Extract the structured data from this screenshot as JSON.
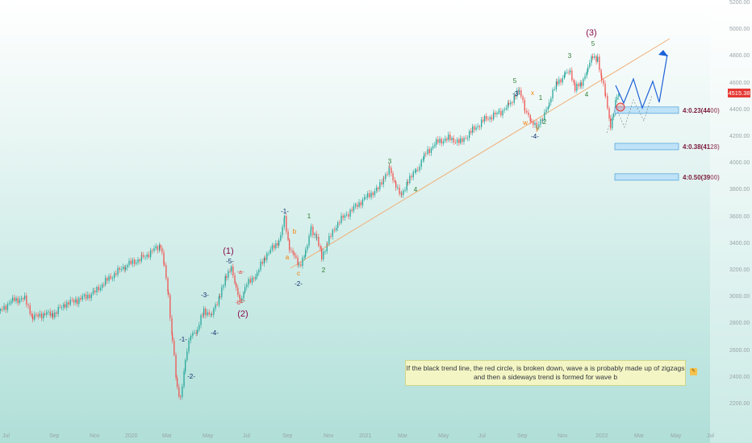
{
  "chart_data": {
    "type": "candlestick",
    "current_price": "4515.38",
    "y_axis_ticks": [
      "5200.00",
      "5000.00",
      "4800.00",
      "4600.00",
      "4400.00",
      "4200.00",
      "4000.00",
      "3800.00",
      "3600.00",
      "3400.00",
      "3200.00",
      "3000.00",
      "2800.00",
      "2600.00",
      "2400.00",
      "2200.00"
    ],
    "x_axis_ticks": [
      "Jul",
      "Sep",
      "Nov",
      "2020",
      "Mar",
      "May",
      "Jul",
      "Sep",
      "Nov",
      "2021",
      "Mar",
      "May",
      "Jul",
      "Sep",
      "Nov",
      "2022",
      "Mar",
      "May",
      "Jul"
    ],
    "series_approx": [
      {
        "t": "2019-06",
        "price": 2900
      },
      {
        "t": "2019-08",
        "price": 2880
      },
      {
        "t": "2019-10",
        "price": 2980
      },
      {
        "t": "2020-01",
        "price": 3300
      },
      {
        "t": "2020-02-19",
        "price": 3390
      },
      {
        "t": "2020-03-23",
        "price": 2240
      },
      {
        "t": "2020-04",
        "price": 2800
      },
      {
        "t": "2020-06-08",
        "price": 3230
      },
      {
        "t": "2020-06",
        "price": 3000
      },
      {
        "t": "2020-09-02",
        "price": 3580
      },
      {
        "t": "2020-09-23",
        "price": 3240
      },
      {
        "t": "2020-10-12",
        "price": 3530
      },
      {
        "t": "2020-10-30",
        "price": 3270
      },
      {
        "t": "2021-01",
        "price": 3850
      },
      {
        "t": "2021-02",
        "price": 3950
      },
      {
        "t": "2021-03",
        "price": 3730
      },
      {
        "t": "2021-05",
        "price": 4200
      },
      {
        "t": "2021-07",
        "price": 4400
      },
      {
        "t": "2021-09-02",
        "price": 4545
      },
      {
        "t": "2021-10-04",
        "price": 4280
      },
      {
        "t": "2021-11",
        "price": 4700
      },
      {
        "t": "2021-12",
        "price": 4600
      },
      {
        "t": "2022-01-04",
        "price": 4810
      },
      {
        "t": "2022-01-24",
        "price": 4220
      },
      {
        "t": "2022-02",
        "price": 4515
      }
    ],
    "targets": [
      {
        "label": "4:0.23(4400)",
        "price": 4400
      },
      {
        "label": "4:0.38(4128)",
        "price": 4128
      },
      {
        "label": "4:0.50(3900)",
        "price": 3900
      }
    ],
    "wave_labels": [
      {
        "text": "(1)",
        "color": "#880e4f"
      },
      {
        "text": "(2)",
        "color": "#880e4f"
      },
      {
        "text": "(3)",
        "color": "#880e4f"
      },
      {
        "text": "-1-",
        "color": "#0d2b6b"
      },
      {
        "text": "-2-",
        "color": "#0d2b6b"
      },
      {
        "text": "-3-",
        "color": "#0d2b6b"
      },
      {
        "text": "-4-",
        "color": "#0d2b6b"
      },
      {
        "text": "-5-",
        "color": "#0d2b6b"
      },
      {
        "text": "-1-",
        "color": "#0d2b6b"
      },
      {
        "text": "-2-",
        "color": "#0d2b6b"
      },
      {
        "text": "-3-",
        "color": "#0d2b6b"
      },
      {
        "text": "-4-",
        "color": "#0d2b6b"
      },
      {
        "text": "-a-",
        "color": "#e53935"
      },
      {
        "text": "-b-",
        "color": "#e53935"
      },
      {
        "text": "-c-",
        "color": "#e53935"
      },
      {
        "text": "a",
        "color": "#f57c00"
      },
      {
        "text": "b",
        "color": "#f57c00"
      },
      {
        "text": "c",
        "color": "#f57c00"
      },
      {
        "text": "w",
        "color": "#f57c00"
      },
      {
        "text": "x",
        "color": "#f57c00"
      },
      {
        "text": "y",
        "color": "#f57c00"
      },
      {
        "text": "1",
        "color": "#2e7d32"
      },
      {
        "text": "2",
        "color": "#2e7d32"
      },
      {
        "text": "3",
        "color": "#2e7d32"
      },
      {
        "text": "4",
        "color": "#2e7d32"
      },
      {
        "text": "5",
        "color": "#2e7d32"
      },
      {
        "text": "1",
        "color": "#2e7d32"
      },
      {
        "text": "2",
        "color": "#2e7d32"
      },
      {
        "text": "3",
        "color": "#2e7d32"
      },
      {
        "text": "4",
        "color": "#2e7d32"
      },
      {
        "text": "5",
        "color": "#2e7d32"
      }
    ],
    "colors": {
      "up": "#26a69a",
      "down": "#ef5350",
      "trendline": "#f0b07a",
      "projection": "#1e62d8",
      "target_fill": "#bfe2f7",
      "target_border": "#4a9fdc",
      "label_text": "#7b1a3a"
    }
  },
  "annotation": {
    "note": "If the black trend line, the red circle, is broken down, wave a is probably made up of zigzags and then a sideways trend is formed for wave b"
  }
}
